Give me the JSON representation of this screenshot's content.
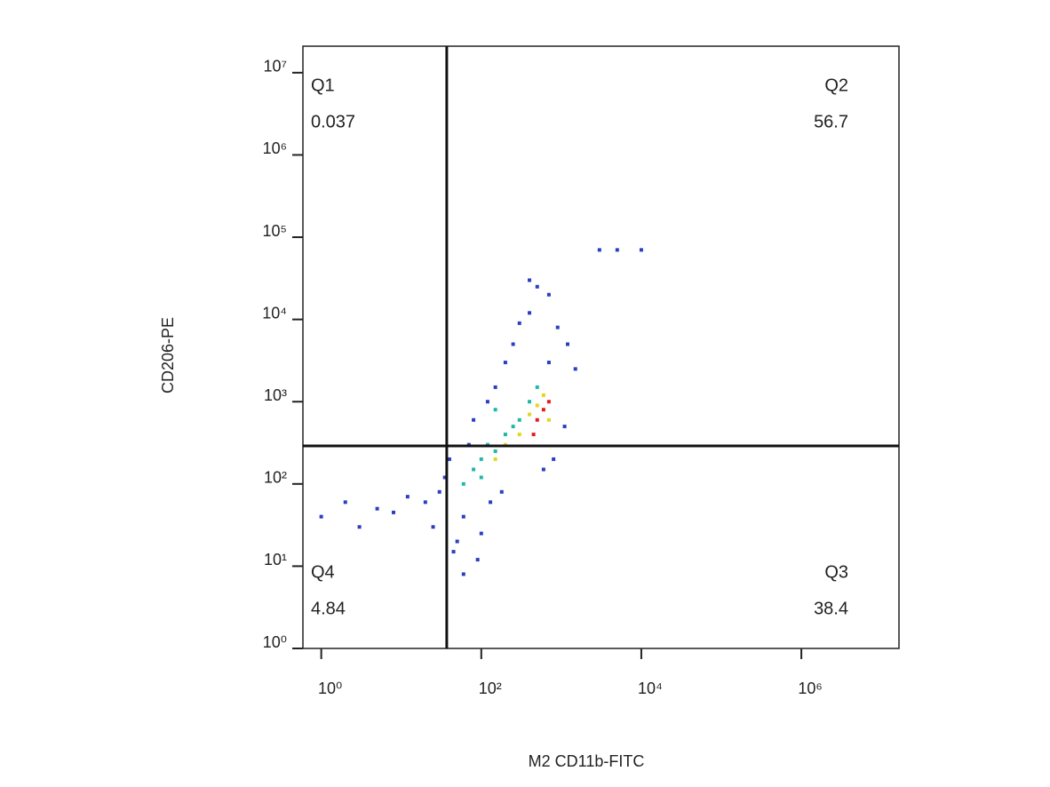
{
  "chart_data": {
    "type": "scatter",
    "xlabel": "M2 CD11b-FITC",
    "ylabel": "CD206-PE",
    "xscale": "log",
    "yscale": "log",
    "xlim": [
      0.59,
      16600000
    ],
    "ylim": [
      1,
      21000000
    ],
    "xticks": [
      {
        "value": 1,
        "label": "10⁰"
      },
      {
        "value": 100,
        "label": "10²"
      },
      {
        "value": 10000,
        "label": "10⁴"
      },
      {
        "value": 1000000,
        "label": "10⁶"
      }
    ],
    "yticks": [
      {
        "value": 1,
        "label": "10⁰"
      },
      {
        "value": 10,
        "label": "10¹"
      },
      {
        "value": 100,
        "label": "10²"
      },
      {
        "value": 1000,
        "label": "10³"
      },
      {
        "value": 10000,
        "label": "10⁴"
      },
      {
        "value": 100000,
        "label": "10⁵"
      },
      {
        "value": 1000000,
        "label": "10⁶"
      },
      {
        "value": 10000000,
        "label": "10⁷"
      }
    ],
    "gates": {
      "x": 37,
      "y": 290
    },
    "quadrants": [
      {
        "label": "Q1",
        "value": 0.037
      },
      {
        "label": "Q2",
        "value": 56.7
      },
      {
        "label": "Q3",
        "value": 38.4
      },
      {
        "label": "Q4",
        "value": 4.84
      }
    ],
    "series": [
      {
        "color": "#2a3fc0",
        "x": [
          1,
          2,
          3,
          5,
          8,
          12,
          20,
          25,
          30,
          35,
          40,
          45,
          50,
          60,
          70,
          80,
          100,
          120,
          150,
          200,
          250,
          300,
          400,
          500,
          700,
          900,
          1200,
          1500,
          1100,
          800,
          600,
          3000,
          5000,
          10000,
          400,
          60,
          90,
          130,
          180,
          700
        ],
        "values": [
          40,
          60,
          30,
          50,
          45,
          70,
          60,
          30,
          80,
          120,
          200,
          15,
          20,
          40,
          300,
          600,
          25,
          1000,
          1500,
          3000,
          5000,
          9000,
          12000,
          25000,
          20000,
          8000,
          5000,
          2500,
          500,
          200,
          150,
          70000,
          70000,
          70000,
          30000,
          8,
          12,
          60,
          80,
          3000
        ]
      },
      {
        "color": "#20b8a8",
        "x": [
          60,
          80,
          100,
          120,
          150,
          200,
          250,
          300,
          150,
          100,
          400,
          500
        ],
        "values": [
          100,
          150,
          200,
          300,
          250,
          400,
          500,
          600,
          800,
          120,
          1000,
          1500
        ]
      },
      {
        "color": "#e0d820",
        "x": [
          150,
          200,
          300,
          400,
          500,
          600,
          700
        ],
        "values": [
          200,
          300,
          400,
          700,
          900,
          1200,
          600
        ]
      },
      {
        "color": "#e02020",
        "x": [
          500,
          600,
          700,
          450
        ],
        "values": [
          600,
          800,
          1000,
          400
        ]
      }
    ]
  }
}
